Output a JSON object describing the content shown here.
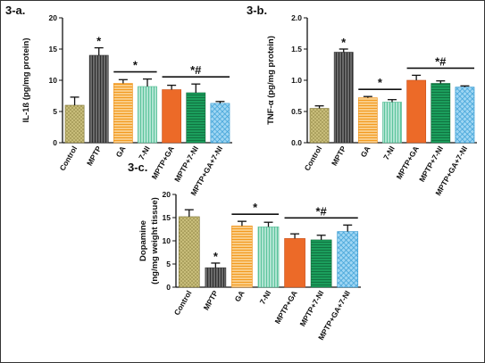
{
  "colors": {
    "khaki": "#b8ad6a",
    "grey": "#555555",
    "yellow_orange": "#f5a93a",
    "mint": "#8fd6b8",
    "orange_red": "#ec6a28",
    "green": "#1b9e5c",
    "blue": "#5ab8e6"
  },
  "chart_data": [
    {
      "type": "bar",
      "panel": "3-a.",
      "ylabel": "IL-1ß (pg/mg protein)",
      "ylim": [
        0,
        20
      ],
      "yticks": [
        "0",
        "5",
        "10",
        "15",
        "20"
      ],
      "categories": [
        "Control",
        "MPTP",
        "GA",
        "7-NI",
        "MPTP+GA",
        "MPTP+7-NI",
        "MPTP+GA+7-NI"
      ],
      "values": [
        6,
        14,
        9.5,
        9,
        8.5,
        8,
        6.3
      ],
      "errors": [
        1.3,
        1.2,
        0.6,
        1.2,
        0.7,
        1.4,
        0.3
      ],
      "annotations": [
        {
          "text": "*",
          "over": [
            1
          ]
        },
        {
          "text": "*",
          "over": [
            2,
            3
          ]
        },
        {
          "text": "*#",
          "over": [
            4,
            5,
            6
          ]
        }
      ]
    },
    {
      "type": "bar",
      "panel": "3-b.",
      "ylabel": "TNF-α (pg/mg protein)",
      "ylim": [
        0,
        2.0
      ],
      "yticks": [
        "0.0",
        "0.5",
        "1.0",
        "1.5",
        "2.0"
      ],
      "categories": [
        "Control",
        "MPTP",
        "GA",
        "7-NI",
        "MPTP+GA",
        "MPTP+7-NI",
        "MPTP+GA+7-NI"
      ],
      "values": [
        0.55,
        1.45,
        0.72,
        0.65,
        1.0,
        0.95,
        0.89
      ],
      "errors": [
        0.04,
        0.05,
        0.02,
        0.04,
        0.08,
        0.04,
        0.02
      ],
      "annotations": [
        {
          "text": "*",
          "over": [
            1
          ]
        },
        {
          "text": "*",
          "over": [
            2,
            3
          ]
        },
        {
          "text": "*#",
          "over": [
            4,
            5,
            6
          ]
        }
      ]
    },
    {
      "type": "bar",
      "panel": "3-c.",
      "ylabel": "Dopamine",
      "ylabel2": "(ng/mg weight tissue)",
      "ylim": [
        0,
        20
      ],
      "yticks": [
        "0",
        "5",
        "10",
        "15",
        "20"
      ],
      "categories": [
        "Control",
        "MPTP",
        "GA",
        "7-NI",
        "MPTP+GA",
        "MPTP+7-NI",
        "MPTP+GA+7-NI"
      ],
      "values": [
        15.2,
        4.2,
        13.2,
        13,
        10.5,
        10.2,
        12
      ],
      "errors": [
        1.5,
        1.0,
        1.0,
        1.0,
        1.0,
        1.0,
        1.4
      ],
      "annotations": [
        {
          "text": "*",
          "over": [
            1
          ]
        },
        {
          "text": "*",
          "over": [
            2,
            3
          ]
        },
        {
          "text": "*#",
          "over": [
            4,
            5,
            6
          ]
        }
      ]
    }
  ]
}
